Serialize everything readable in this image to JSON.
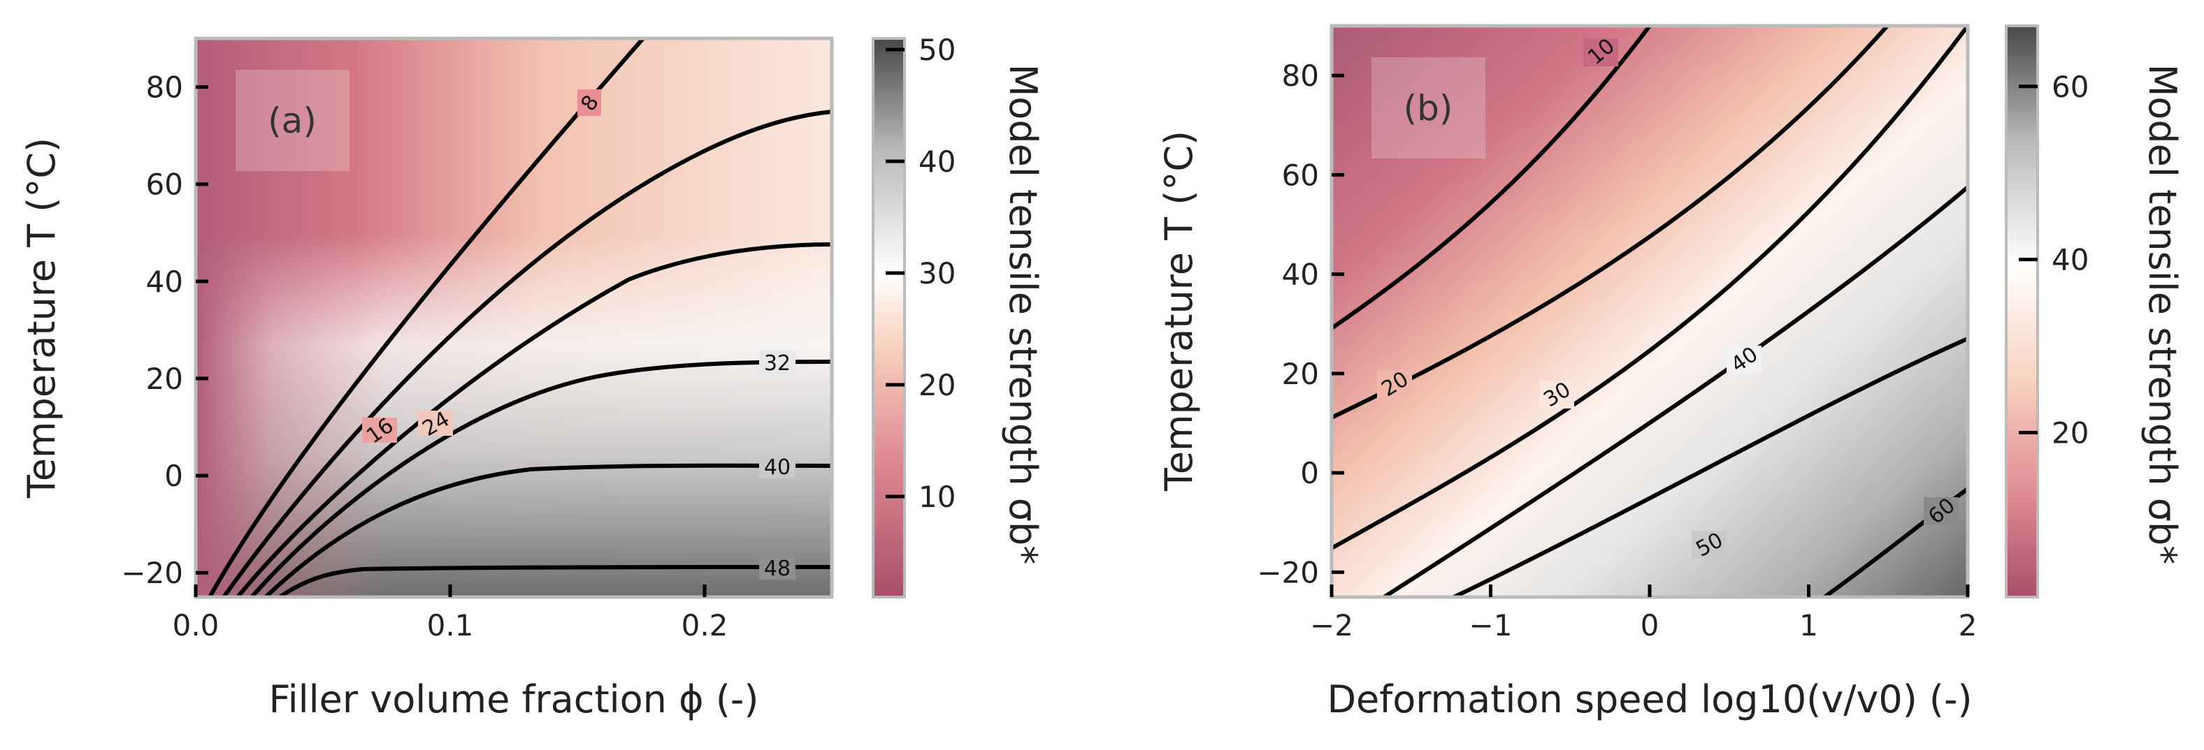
{
  "chart_data": [
    {
      "type": "heatmap",
      "panel_label": "(a)",
      "title": "",
      "xlabel": "Filler volume fraction ϕ (-)",
      "ylabel": "Temperature T (°C)",
      "xlim": [
        0.0,
        0.25
      ],
      "ylim": [
        -25,
        90
      ],
      "xticks": [
        0.0,
        0.1,
        0.2
      ],
      "xtick_labels": [
        "0.0",
        "0.1",
        "0.2"
      ],
      "yticks": [
        -20,
        0,
        20,
        40,
        60,
        80
      ],
      "ytick_labels": [
        "−20",
        "0",
        "20",
        "40",
        "60",
        "80"
      ],
      "colorbar": {
        "label": "Model tensile strength σb*",
        "range": [
          1,
          51
        ],
        "ticks": [
          10,
          20,
          30,
          40,
          50
        ],
        "tick_labels": [
          "10",
          "20",
          "30",
          "40",
          "50"
        ]
      },
      "contour_levels": [
        8,
        16,
        24,
        32,
        40,
        48
      ],
      "contour_labels": [
        "8",
        "16",
        "24",
        "32",
        "40",
        "48"
      ],
      "colors": {
        "low": "#b05870",
        "mid_low": "#e7a48c",
        "mid": "#fff7f2",
        "high": "#5a5a5a"
      }
    },
    {
      "type": "heatmap",
      "panel_label": "(b)",
      "title": "",
      "xlabel": "Deformation speed log10(v/v0) (-)",
      "ylabel": "Temperature T (°C)",
      "xlim": [
        -2,
        2
      ],
      "ylim": [
        -25,
        90
      ],
      "xticks": [
        -2,
        -1,
        0,
        1,
        2
      ],
      "xtick_labels": [
        "−2",
        "−1",
        "0",
        "1",
        "2"
      ],
      "yticks": [
        -20,
        0,
        20,
        40,
        60,
        80
      ],
      "ytick_labels": [
        "−20",
        "0",
        "20",
        "40",
        "60",
        "80"
      ],
      "colorbar": {
        "label": "Model tensile strength σb*",
        "range": [
          1,
          67
        ],
        "ticks": [
          20,
          40,
          60
        ],
        "tick_labels": [
          "20",
          "40",
          "60"
        ]
      },
      "contour_levels": [
        10,
        20,
        30,
        40,
        50,
        60
      ],
      "contour_labels": [
        "10",
        "20",
        "30",
        "40",
        "50",
        "60"
      ],
      "colors": {
        "low": "#b05870",
        "mid_low": "#e7a48c",
        "mid": "#fff7f2",
        "high": "#5a5a5a"
      }
    }
  ]
}
